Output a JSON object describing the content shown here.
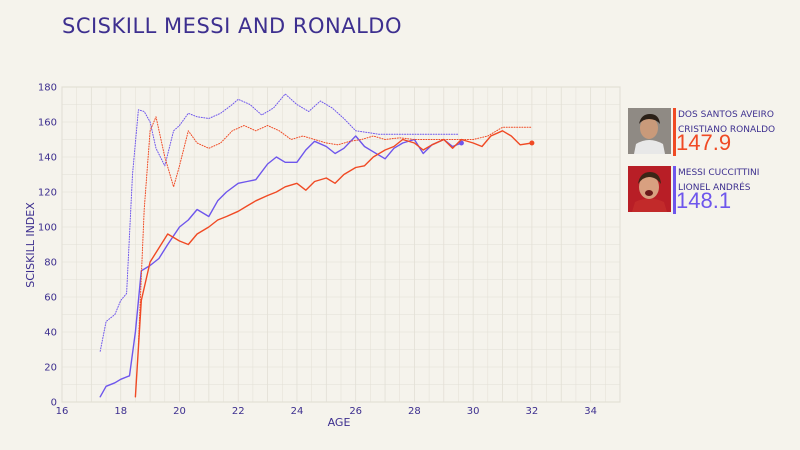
{
  "title": "SCISKILL MESSI AND RONALDO",
  "colors": {
    "ronaldo": "#f04a24",
    "messi": "#6e56ec",
    "text": "#3d2f8f",
    "grid": "#e2dfd5",
    "background": "#f5f3ec"
  },
  "players": [
    {
      "surname": "DOS SANTOS AVEIRO",
      "given": "CRISTIANO RONALDO",
      "score": "147.9",
      "color": "#f04a24"
    },
    {
      "surname": "MESSI CUCCITTINI",
      "given": "LIONEL ANDRÉS",
      "score": "148.1",
      "color": "#6e56ec"
    }
  ],
  "chart_data": {
    "type": "line",
    "xlabel": "AGE",
    "ylabel": "SCISKILL INDEX",
    "xlim": [
      16,
      35
    ],
    "ylim": [
      0,
      180
    ],
    "xticks": [
      16,
      18,
      20,
      22,
      24,
      26,
      28,
      30,
      32,
      34
    ],
    "yticks": [
      0,
      20,
      40,
      60,
      80,
      100,
      120,
      140,
      160,
      180
    ],
    "grid": true,
    "series": [
      {
        "color": "#6e56ec",
        "style": "solid",
        "x": [
          17.3,
          17.5,
          17.8,
          18.0,
          18.3,
          18.5,
          18.7,
          19.0,
          19.3,
          19.6,
          20.0,
          20.3,
          20.6,
          21.0,
          21.3,
          21.6,
          22.0,
          22.3,
          22.6,
          23.0,
          23.3,
          23.6,
          24.0,
          24.3,
          24.6,
          25.0,
          25.3,
          25.6,
          26.0,
          26.3,
          26.6,
          27.0,
          27.3,
          27.6,
          28.0,
          28.3,
          28.6,
          29.0,
          29.3,
          29.6
        ],
        "y": [
          3,
          9,
          11,
          13,
          15,
          40,
          75,
          78,
          82,
          90,
          100,
          104,
          110,
          106,
          115,
          120,
          125,
          126,
          127,
          136,
          140,
          137,
          137,
          144,
          149,
          146,
          142,
          145,
          152,
          146,
          143,
          139,
          145,
          148,
          150,
          142,
          147,
          150,
          146,
          148
        ]
      },
      {
        "color": "#6e56ec",
        "style": "dotted",
        "x": [
          17.3,
          17.5,
          17.8,
          18.0,
          18.2,
          18.4,
          18.6,
          18.8,
          19.0,
          19.2,
          19.5,
          19.8,
          20.0,
          20.3,
          20.6,
          21.0,
          21.4,
          21.8,
          22.0,
          22.4,
          22.8,
          23.2,
          23.6,
          24.0,
          24.4,
          24.8,
          25.2,
          25.6,
          26.0,
          26.4,
          26.8,
          27.2,
          27.6,
          28.0,
          28.5,
          29.0,
          29.5
        ],
        "y": [
          29,
          46,
          50,
          58,
          62,
          130,
          167,
          166,
          160,
          145,
          135,
          155,
          158,
          165,
          163,
          162,
          165,
          170,
          173,
          170,
          164,
          168,
          176,
          170,
          166,
          172,
          168,
          162,
          155,
          154,
          153,
          153,
          153,
          153,
          153,
          153,
          153
        ]
      },
      {
        "color": "#f04a24",
        "style": "solid",
        "x": [
          18.5,
          18.7,
          19.0,
          19.3,
          19.6,
          20.0,
          20.3,
          20.6,
          21.0,
          21.3,
          21.6,
          22.0,
          22.3,
          22.6,
          23.0,
          23.3,
          23.6,
          24.0,
          24.3,
          24.6,
          25.0,
          25.3,
          25.6,
          26.0,
          26.3,
          26.6,
          27.0,
          27.3,
          27.6,
          28.0,
          28.3,
          28.6,
          29.0,
          29.3,
          29.6,
          30.0,
          30.3,
          30.6,
          31.0,
          31.3,
          31.6,
          32.0
        ],
        "y": [
          3,
          58,
          80,
          88,
          96,
          92,
          90,
          96,
          100,
          104,
          106,
          109,
          112,
          115,
          118,
          120,
          123,
          125,
          121,
          126,
          128,
          125,
          130,
          134,
          135,
          140,
          144,
          146,
          150,
          148,
          144,
          147,
          150,
          145,
          150,
          148,
          146,
          152,
          155,
          152,
          147,
          148
        ]
      },
      {
        "color": "#f04a24",
        "style": "dotted",
        "x": [
          18.6,
          18.8,
          19.0,
          19.2,
          19.5,
          19.8,
          20.0,
          20.3,
          20.6,
          21.0,
          21.4,
          21.8,
          22.2,
          22.6,
          23.0,
          23.4,
          23.8,
          24.2,
          24.6,
          25.0,
          25.4,
          25.8,
          26.2,
          26.6,
          27.0,
          27.5,
          28.0,
          28.5,
          29.0,
          29.5,
          30.0,
          30.5,
          31.0,
          31.5,
          32.0
        ],
        "y": [
          33,
          110,
          155,
          163,
          140,
          123,
          135,
          155,
          148,
          145,
          148,
          155,
          158,
          155,
          158,
          155,
          150,
          152,
          150,
          148,
          147,
          149,
          150,
          152,
          150,
          151,
          150,
          150,
          150,
          150,
          150,
          152,
          157,
          157,
          157
        ]
      }
    ]
  }
}
